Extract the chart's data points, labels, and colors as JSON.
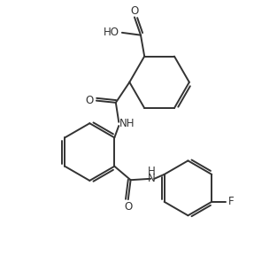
{
  "bg_color": "#ffffff",
  "line_color": "#333333",
  "line_width": 1.4,
  "font_size": 8.5,
  "fig_width": 2.87,
  "fig_height": 3.15,
  "dpi": 100,
  "xlim": [
    0,
    10
  ],
  "ylim": [
    0,
    11
  ]
}
